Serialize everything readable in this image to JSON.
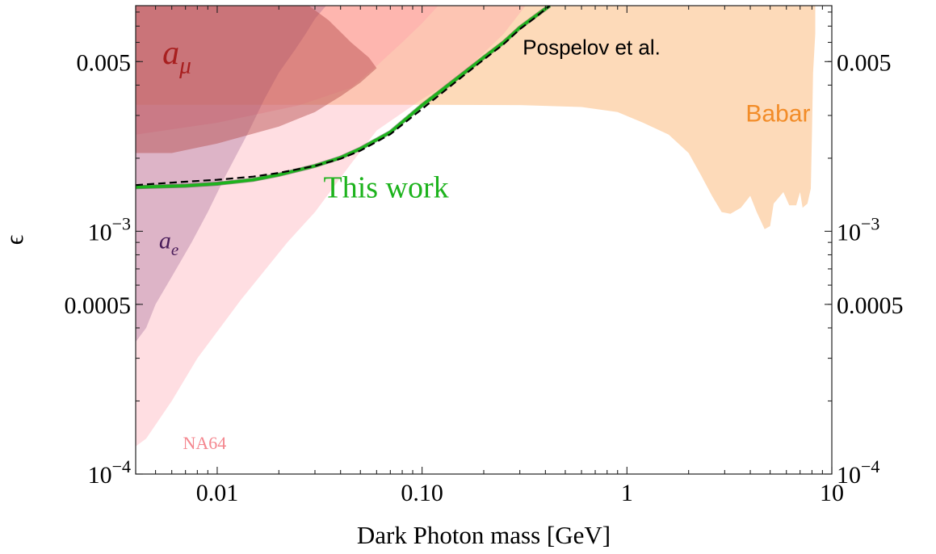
{
  "chart_data": {
    "type": "area",
    "title": "",
    "xlabel": "Dark Photon mass [GeV]",
    "ylabel": "ϵ",
    "xscale": "log",
    "yscale": "log",
    "xlim": [
      0.004,
      10
    ],
    "ylim": [
      0.0001,
      0.0085
    ],
    "grid": false,
    "legend": "none (regions labeled inline)",
    "x_ticks": [
      {
        "value": 0.01,
        "label": "0.01"
      },
      {
        "value": 0.1,
        "label": "0.10"
      },
      {
        "value": 1,
        "label": "1"
      },
      {
        "value": 10,
        "label": "10"
      }
    ],
    "y_ticks": [
      {
        "value": 0.0001,
        "base": "10",
        "exp": "−4"
      },
      {
        "value": 0.0005,
        "label": "0.0005"
      },
      {
        "value": 0.001,
        "base": "10",
        "exp": "−3"
      },
      {
        "value": 0.005,
        "label": "0.005"
      }
    ],
    "colors": {
      "a_mu": "#b44a4a",
      "a_e": "#7a3c7a",
      "na64": "#ff9aa8",
      "babar": "#fcc48e",
      "this_work": "#1db31d",
      "pospelov": "#000000"
    },
    "regions": [
      {
        "id": "babar",
        "label": "Babar",
        "color": "#fcc48e",
        "opacity": 0.62,
        "label_at": [
          3.8,
          0.00283
        ],
        "label_color": "#f28c28",
        "label_size": 30,
        "label_font": "sans",
        "points": [
          [
            0.004,
            0.0085
          ],
          [
            8.3,
            0.0085
          ],
          [
            8.3,
            0.0065
          ],
          [
            8.1,
            0.0045
          ],
          [
            8.0,
            0.0025
          ],
          [
            7.9,
            0.0015
          ],
          [
            7.6,
            0.0013
          ],
          [
            7.2,
            0.00125
          ],
          [
            7.0,
            0.00145
          ],
          [
            6.7,
            0.00128
          ],
          [
            6.2,
            0.00128
          ],
          [
            5.8,
            0.00145
          ],
          [
            5.2,
            0.0013
          ],
          [
            5.0,
            0.00105
          ],
          [
            4.7,
            0.00102
          ],
          [
            4.3,
            0.0012
          ],
          [
            4.0,
            0.0014
          ],
          [
            3.6,
            0.00125
          ],
          [
            3.2,
            0.00118
          ],
          [
            2.9,
            0.0012
          ],
          [
            2.6,
            0.0014
          ],
          [
            2.3,
            0.0017
          ],
          [
            2.0,
            0.0021
          ],
          [
            1.6,
            0.0025
          ],
          [
            1.2,
            0.0028
          ],
          [
            0.9,
            0.0031
          ],
          [
            0.6,
            0.00325
          ],
          [
            0.3,
            0.00331
          ],
          [
            0.1,
            0.00332
          ],
          [
            0.004,
            0.00332
          ]
        ]
      },
      {
        "id": "na64",
        "label": "NA64",
        "color": "#ff9aa8",
        "opacity": 0.33,
        "label_at": [
          0.0068,
          0.000127
        ],
        "label_color": "#f4878f",
        "label_size": 22,
        "label_font": "serif",
        "points": [
          [
            0.004,
            0.0085
          ],
          [
            0.32,
            0.0085
          ],
          [
            0.25,
            0.0065
          ],
          [
            0.15,
            0.0043
          ],
          [
            0.1,
            0.0035
          ],
          [
            0.06,
            0.0026
          ],
          [
            0.045,
            0.0019
          ],
          [
            0.03,
            0.0012
          ],
          [
            0.022,
            0.0009
          ],
          [
            0.013,
            0.00052
          ],
          [
            0.008,
            0.0003
          ],
          [
            0.006,
            0.0002
          ],
          [
            0.0045,
            0.00014
          ],
          [
            0.004,
            0.00013
          ]
        ]
      },
      {
        "id": "na64_upper",
        "label": "",
        "color": "#ff9aa8",
        "opacity": 0.35,
        "points": [
          [
            0.004,
            0.0085
          ],
          [
            0.12,
            0.0085
          ],
          [
            0.1,
            0.0072
          ],
          [
            0.08,
            0.006
          ],
          [
            0.06,
            0.0048
          ],
          [
            0.045,
            0.0039
          ],
          [
            0.025,
            0.0033
          ],
          [
            0.01,
            0.0028
          ],
          [
            0.004,
            0.0025
          ]
        ]
      },
      {
        "id": "a_e",
        "label": "a",
        "label_sub": "e",
        "color": "#7a3c7a",
        "opacity": 0.26,
        "label_at": [
          0.0052,
          0.00085
        ],
        "label_color": "#4a1d5a",
        "label_size": 30,
        "label_font": "serif",
        "points": [
          [
            0.004,
            0.0085
          ],
          [
            0.034,
            0.0085
          ],
          [
            0.03,
            0.0075
          ],
          [
            0.027,
            0.0065
          ],
          [
            0.024,
            0.0056
          ],
          [
            0.02,
            0.0045
          ],
          [
            0.017,
            0.0035
          ],
          [
            0.014,
            0.0025
          ],
          [
            0.011,
            0.0017
          ],
          [
            0.009,
            0.0012
          ],
          [
            0.0075,
            0.0009
          ],
          [
            0.006,
            0.00065
          ],
          [
            0.005,
            0.0005
          ],
          [
            0.0045,
            0.0004
          ],
          [
            0.004,
            0.00035
          ]
        ]
      },
      {
        "id": "a_mu",
        "label": "a",
        "label_sub": "μ",
        "color": "#b44a4a",
        "opacity": 0.45,
        "label_at": [
          0.0054,
          0.0049
        ],
        "label_color": "#a81f1f",
        "label_size": 42,
        "label_font": "serif",
        "points": [
          [
            0.004,
            0.0085
          ],
          [
            0.028,
            0.0085
          ],
          [
            0.035,
            0.0074
          ],
          [
            0.045,
            0.006
          ],
          [
            0.055,
            0.0052
          ],
          [
            0.06,
            0.0047
          ],
          [
            0.05,
            0.0041
          ],
          [
            0.04,
            0.0036
          ],
          [
            0.03,
            0.0031
          ],
          [
            0.02,
            0.0027
          ],
          [
            0.01,
            0.0023
          ],
          [
            0.006,
            0.0021
          ],
          [
            0.004,
            0.0021
          ]
        ]
      }
    ],
    "series": [
      {
        "name": "This work",
        "color": "#1db31d",
        "style": "solid",
        "width": 3.5,
        "label_at": [
          0.033,
          0.00138
        ],
        "label_color": "#1db31d",
        "label_size": 38,
        "label_font": "serif",
        "x": [
          0.004,
          0.007,
          0.01,
          0.015,
          0.02,
          0.03,
          0.04,
          0.05,
          0.07,
          0.1,
          0.15,
          0.2,
          0.25,
          0.3,
          0.35,
          0.42
        ],
        "y": [
          0.00152,
          0.00154,
          0.00157,
          0.00163,
          0.00171,
          0.00186,
          0.00201,
          0.00219,
          0.00256,
          0.0033,
          0.0043,
          0.0052,
          0.006,
          0.0069,
          0.0076,
          0.0085
        ]
      },
      {
        "name": "Pospelov et al.",
        "color": "#000000",
        "style": "dashed",
        "width": 2.2,
        "label_at": [
          0.31,
          0.00535
        ],
        "label_color": "#000000",
        "label_size": 26,
        "label_font": "sans",
        "x": [
          0.004,
          0.007,
          0.01,
          0.015,
          0.02,
          0.03,
          0.04,
          0.05,
          0.07,
          0.1,
          0.15,
          0.2,
          0.25,
          0.3,
          0.35,
          0.42
        ],
        "y": [
          0.00155,
          0.0016,
          0.00163,
          0.00168,
          0.00174,
          0.00186,
          0.00199,
          0.00215,
          0.00251,
          0.00319,
          0.0042,
          0.0051,
          0.0059,
          0.0068,
          0.0075,
          0.0085
        ]
      }
    ]
  }
}
